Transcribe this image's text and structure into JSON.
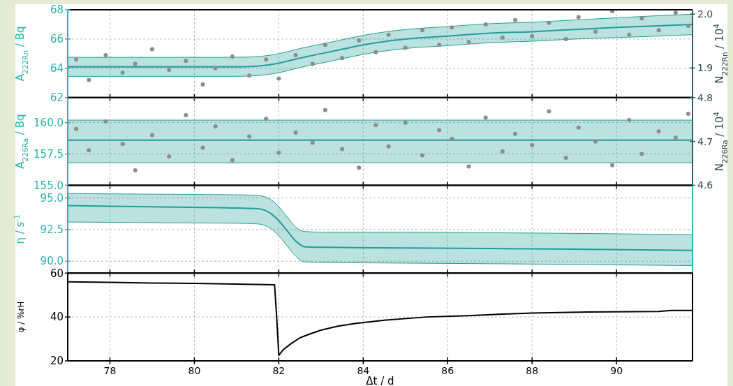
{
  "chart_data": [
    {
      "type": "line",
      "ylabel": "A$_{222Rn}$ / Bq",
      "y2label": "N$_{222Rn}$ / 10$^{4}$",
      "xlim": [
        77,
        91.8
      ],
      "xticks": [
        78,
        80,
        82,
        84,
        86,
        88,
        90
      ],
      "ylim": [
        62,
        68
      ],
      "yticks": [
        62,
        64,
        66,
        68
      ],
      "y2lim": [
        1.845,
        2.008
      ],
      "y2ticks": [
        1.9,
        {
          "value": 2.0,
          "label": "2.0"
        }
      ],
      "grid": true,
      "tick_labels": "y",
      "series": [
        {
          "type": "scatter",
          "color": "#8c8c8c",
          "x": [
            77.2,
            77.5,
            77.9,
            78.3,
            78.6,
            79.0,
            79.4,
            79.8,
            80.2,
            80.5,
            80.9,
            81.3,
            81.7,
            82.0,
            82.4,
            82.8,
            83.1,
            83.5,
            83.9,
            84.3,
            84.6,
            85.0,
            85.4,
            85.8,
            86.1,
            86.5,
            86.9,
            87.3,
            87.6,
            88.0,
            88.4,
            88.8,
            89.1,
            89.5,
            89.9,
            90.3,
            90.6,
            91.0,
            91.4,
            91.7
          ],
          "values": [
            64.6,
            63.2,
            64.9,
            63.7,
            64.3,
            65.3,
            63.9,
            64.5,
            62.9,
            64.0,
            64.8,
            63.5,
            64.6,
            63.3,
            64.9,
            64.3,
            65.6,
            64.7,
            65.9,
            65.1,
            66.3,
            65.4,
            66.6,
            65.6,
            66.8,
            65.8,
            67.0,
            66.1,
            67.3,
            66.2,
            67.1,
            66.0,
            67.5,
            66.5,
            67.9,
            66.3,
            67.4,
            66.6,
            67.8,
            66.9
          ]
        },
        {
          "color": "#1f9e98",
          "x": [
            77,
            78,
            79,
            80,
            81,
            81.5,
            82,
            82.5,
            83,
            83.5,
            84,
            85,
            86,
            87,
            88,
            89,
            90,
            91,
            91.8
          ],
          "values": [
            64.1,
            64.1,
            64.1,
            64.1,
            64.1,
            64.15,
            64.35,
            64.7,
            65.0,
            65.3,
            65.6,
            66.0,
            66.2,
            66.4,
            66.5,
            66.65,
            66.8,
            66.9,
            67.0
          ],
          "lower": [
            63.45,
            63.45,
            63.45,
            63.45,
            63.45,
            63.5,
            63.7,
            64.05,
            64.35,
            64.65,
            64.95,
            65.35,
            65.55,
            65.75,
            65.85,
            66.0,
            66.1,
            66.2,
            66.3
          ],
          "upper": [
            64.75,
            64.75,
            64.75,
            64.75,
            64.75,
            64.8,
            65.0,
            65.35,
            65.65,
            65.95,
            66.25,
            66.65,
            66.85,
            67.05,
            67.15,
            67.3,
            67.45,
            67.6,
            67.7
          ]
        }
      ]
    },
    {
      "type": "line",
      "ylabel": "A$_{226Ra}$ / Bq",
      "y2label": "N$_{226Ra}$ / 10$^{4}$",
      "xlim": [
        77,
        91.8
      ],
      "xticks": [
        78,
        80,
        82,
        84,
        86,
        88,
        90
      ],
      "ylim": [
        155,
        162
      ],
      "yticks": [
        {
          "value": 155,
          "label": "155.0"
        },
        {
          "value": 157.5,
          "label": "157.5"
        },
        {
          "value": 160,
          "label": "160.0"
        }
      ],
      "y2lim": [
        4.6,
        4.8
      ],
      "y2ticks": [
        4.6,
        4.7,
        4.8
      ],
      "grid": true,
      "tick_labels": "y",
      "series": [
        {
          "type": "scatter",
          "color": "#8c8c8c",
          "x": [
            77.2,
            77.5,
            77.9,
            78.3,
            78.6,
            79.0,
            79.4,
            79.8,
            80.2,
            80.5,
            80.9,
            81.3,
            81.7,
            82.0,
            82.4,
            82.8,
            83.1,
            83.5,
            83.9,
            84.3,
            84.6,
            85.0,
            85.4,
            85.8,
            86.1,
            86.5,
            86.9,
            87.3,
            87.6,
            88.0,
            88.4,
            88.8,
            89.1,
            89.5,
            89.9,
            90.3,
            90.6,
            91.0,
            91.4,
            91.7
          ],
          "values": [
            159.5,
            157.8,
            160.1,
            158.3,
            156.2,
            159.0,
            157.3,
            160.6,
            158.0,
            159.7,
            157.0,
            158.9,
            160.3,
            157.6,
            159.2,
            158.4,
            161.0,
            157.9,
            156.4,
            159.8,
            158.1,
            160.0,
            157.4,
            159.4,
            158.7,
            156.5,
            160.4,
            157.7,
            159.1,
            158.2,
            160.9,
            157.2,
            159.6,
            158.5,
            156.6,
            160.2,
            157.5,
            159.3,
            158.8,
            160.7
          ]
        },
        {
          "color": "#1f9e98",
          "x": [
            77,
            91.8
          ],
          "values": [
            158.6,
            158.6
          ],
          "lower": [
            156.8,
            156.8
          ],
          "upper": [
            160.2,
            160.2
          ]
        }
      ]
    },
    {
      "type": "line",
      "ylabel": "η  /  s$^{-1}$",
      "xlim": [
        77,
        91.8
      ],
      "xticks": [
        78,
        80,
        82,
        84,
        86,
        88,
        90
      ],
      "ylim": [
        89.06,
        96
      ],
      "yticks": [
        {
          "value": 90,
          "label": "90.0"
        },
        {
          "value": 92.5,
          "label": "92.5"
        },
        {
          "value": 95,
          "label": "95.0"
        }
      ],
      "grid": true,
      "tick_labels": "y",
      "series": [
        {
          "color": "#1f9e98",
          "x": [
            77,
            79,
            81,
            81.5,
            81.8,
            82.0,
            82.2,
            82.4,
            82.6,
            83,
            85,
            87,
            89,
            91.8
          ],
          "values": [
            94.4,
            94.3,
            94.2,
            94.15,
            93.8,
            93.2,
            92.4,
            91.6,
            91.15,
            91.1,
            91.05,
            91.0,
            90.95,
            90.85
          ],
          "lower": [
            93.1,
            93.05,
            93.0,
            92.95,
            92.6,
            92.0,
            91.2,
            90.4,
            89.95,
            89.9,
            89.85,
            89.8,
            89.75,
            89.65
          ],
          "upper": [
            95.35,
            95.3,
            95.25,
            95.2,
            94.9,
            94.3,
            93.5,
            92.7,
            92.35,
            92.3,
            92.3,
            92.25,
            92.2,
            92.1
          ]
        }
      ]
    },
    {
      "type": "line",
      "xlabel": "Δt / d",
      "ylabel": "φ / %rH",
      "xlim": [
        77,
        91.8
      ],
      "xticks": [
        78,
        80,
        82,
        84,
        86,
        88,
        90
      ],
      "ylim": [
        20,
        60
      ],
      "yticks": [
        20,
        40,
        60
      ],
      "grid": true,
      "series": [
        {
          "color": "#000000",
          "x": [
            77,
            78,
            79,
            80,
            81,
            81.9,
            81.95,
            82.0,
            82.1,
            82.3,
            82.5,
            82.7,
            83.0,
            83.4,
            83.8,
            84.5,
            85.5,
            86.5,
            87.2,
            88,
            89.3,
            91,
            91.3,
            91.8
          ],
          "values": [
            56,
            55.8,
            55.5,
            55.3,
            55,
            54.7,
            40,
            22.5,
            25,
            28,
            30.5,
            32,
            34,
            35.8,
            37,
            38.5,
            40,
            40.6,
            41.2,
            41.8,
            42.3,
            42.5,
            43,
            43
          ]
        }
      ]
    }
  ]
}
